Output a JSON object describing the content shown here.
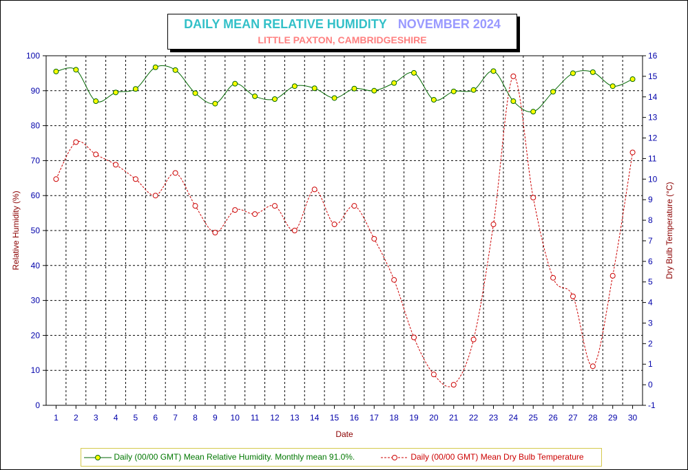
{
  "title": {
    "main": "DAILY MEAN RELATIVE HUMIDITY",
    "period": "NOVEMBER 2024",
    "subtitle": "LITTLE PAXTON, CAMBRIDGESHIRE"
  },
  "colors": {
    "humidity_line": "#006600",
    "humidity_marker": "#ffff00",
    "temperature": "#cc0000",
    "axis_ticks": "#0000aa",
    "axis_title": "#8b0000"
  },
  "legend": {
    "humidity": "Daily (00/00 GMT) Mean Relative Humidity. Monthly mean 91.0%.",
    "temperature": "Daily (00/00 GMT) Mean Dry Bulb Temperature"
  },
  "chart_data": {
    "type": "line",
    "title": "DAILY MEAN RELATIVE HUMIDITY",
    "xlabel": "Date",
    "ylabel_left": "Relative Humidity (%)",
    "ylabel_right": "Dry Bulb Temperature (°C)",
    "x": [
      1,
      2,
      3,
      4,
      5,
      6,
      7,
      8,
      9,
      10,
      11,
      12,
      13,
      14,
      15,
      16,
      17,
      18,
      19,
      20,
      21,
      22,
      23,
      24,
      25,
      26,
      27,
      28,
      29,
      30
    ],
    "ylim_left": [
      0,
      100
    ],
    "yticks_left": [
      0,
      10,
      20,
      30,
      40,
      50,
      60,
      70,
      80,
      90,
      100
    ],
    "ylim_right": [
      -1,
      16
    ],
    "yticks_right": [
      -1,
      0,
      1,
      2,
      3,
      4,
      5,
      6,
      7,
      8,
      9,
      10,
      11,
      12,
      13,
      14,
      15,
      16
    ],
    "grid": true,
    "legend_position": "bottom",
    "series": [
      {
        "name": "Daily (00/00 GMT) Mean Relative Humidity. Monthly mean 91.0%.",
        "axis": "left",
        "style": "solid",
        "values": [
          95.5,
          96.0,
          87.0,
          89.5,
          90.5,
          96.7,
          95.9,
          89.3,
          86.3,
          92.0,
          88.4,
          87.6,
          91.3,
          90.7,
          87.9,
          90.6,
          90.0,
          92.2,
          95.1,
          87.4,
          89.8,
          90.2,
          95.6,
          87.0,
          84.0,
          89.7,
          95.0,
          95.3,
          91.3,
          93.3
        ]
      },
      {
        "name": "Daily (00/00 GMT) Mean Dry Bulb Temperature",
        "axis": "right",
        "style": "dashed",
        "values": [
          10.0,
          11.8,
          11.2,
          10.7,
          10.0,
          9.2,
          10.3,
          8.7,
          7.4,
          8.5,
          8.3,
          8.7,
          7.5,
          9.5,
          7.8,
          8.7,
          7.1,
          5.1,
          2.3,
          0.5,
          0.0,
          2.2,
          7.8,
          15.0,
          9.1,
          5.2,
          4.3,
          0.9,
          5.3,
          11.3
        ]
      }
    ]
  }
}
